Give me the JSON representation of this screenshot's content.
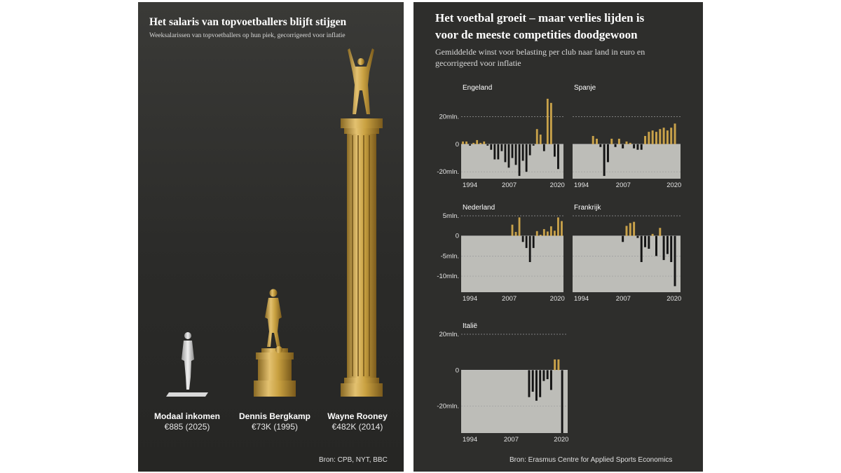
{
  "left_panel": {
    "title": "Het salaris van topvoetballers blijft stijgen",
    "subtitle": "Weeksalarissen van topvoetballers op hun piek, gecorrigeerd voor inflatie",
    "source": "Bron: CPB, NYT, BBC",
    "figures": [
      {
        "name": "Modaal inkomen",
        "value_label": "€885 (2025)"
      },
      {
        "name": "Dennis Bergkamp",
        "value_label": "€73K (1995)"
      },
      {
        "name": "Wayne Rooney",
        "value_label": "€482K (2014)"
      }
    ]
  },
  "right_panel": {
    "title_line1": "Het voetbal groeit – maar verlies lijden is",
    "title_line2": "voor de meeste competities doodgewoon",
    "subtitle_line1": "Gemiddelde winst voor belasting per club naar land in euro en",
    "subtitle_line2": "gecorrigeerd voor inflatie",
    "source": "Bron: Erasmus Centre for Applied Sports Economics"
  },
  "colors": {
    "positive": "#c9a24a",
    "negative": "#141414",
    "plot_bg": "#bdbdb8",
    "gold": "#c8a040"
  },
  "chart_data": [
    {
      "type": "bar",
      "title": "Het salaris van topvoetballers blijft stijgen",
      "subtitle": "Weeksalarissen van topvoetballers op hun piek, gecorrigeerd voor inflatie",
      "categories": [
        "Modaal inkomen",
        "Dennis Bergkamp",
        "Wayne Rooney"
      ],
      "values": [
        885,
        73000,
        482000
      ],
      "value_labels": [
        "€885 (2025)",
        "€73K (1995)",
        "€482K (2014)"
      ]
    },
    {
      "type": "bar",
      "title": "Engeland",
      "x": [
        1994,
        1995,
        1996,
        1997,
        1998,
        1999,
        2000,
        2001,
        2002,
        2003,
        2004,
        2005,
        2006,
        2007,
        2008,
        2009,
        2010,
        2011,
        2012,
        2013,
        2014,
        2015,
        2016,
        2017,
        2018,
        2019,
        2020,
        2021,
        2022
      ],
      "values": [
        2,
        2,
        -1,
        1,
        3,
        1,
        2,
        -1,
        -4,
        -11,
        -11,
        -5,
        -13,
        -17,
        -10,
        -15,
        -23,
        -12,
        -20,
        -8,
        -1,
        11,
        7,
        -5,
        33,
        30,
        -9,
        -18,
        0
      ],
      "yticks": [
        20,
        0,
        -20
      ],
      "ytick_labels": [
        "20mln.",
        "0",
        "-20mln."
      ],
      "ylim": [
        -25,
        35
      ],
      "xtick_labels": [
        "1994",
        "2007",
        "2020"
      ]
    },
    {
      "type": "bar",
      "title": "Spanje",
      "x": [
        1994,
        1995,
        1996,
        1997,
        1998,
        1999,
        2000,
        2001,
        2002,
        2003,
        2004,
        2005,
        2006,
        2007,
        2008,
        2009,
        2010,
        2011,
        2012,
        2013,
        2014,
        2015,
        2016,
        2017,
        2018,
        2019,
        2020,
        2021,
        2022
      ],
      "values": [
        0,
        0,
        0,
        0,
        0,
        6,
        4,
        -2,
        -23,
        -13,
        4,
        -2,
        4,
        -3,
        2,
        1,
        -3,
        -4,
        -4,
        6,
        9,
        10,
        9,
        11,
        12,
        10,
        12,
        15,
        0
      ],
      "yticks": [
        20,
        0,
        -20
      ],
      "ytick_labels": [
        "20mln.",
        "0",
        "-20mln."
      ],
      "ylim": [
        -25,
        35
      ],
      "xtick_labels": [
        "1994",
        "2007",
        "2020"
      ]
    },
    {
      "type": "bar",
      "title": "Nederland",
      "x": [
        1994,
        1995,
        1996,
        1997,
        1998,
        1999,
        2000,
        2001,
        2002,
        2003,
        2004,
        2005,
        2006,
        2007,
        2008,
        2009,
        2010,
        2011,
        2012,
        2013,
        2014,
        2015,
        2016,
        2017,
        2018,
        2019,
        2020,
        2021,
        2022
      ],
      "values": [
        0,
        0,
        0,
        0,
        0,
        0,
        0,
        0,
        0,
        0,
        0,
        0,
        0,
        0,
        2.8,
        1,
        4.6,
        -1.5,
        -3,
        -6.5,
        -3,
        1.2,
        0.3,
        1.7,
        1.1,
        2.4,
        1.3,
        4.6,
        3.7
      ],
      "yticks": [
        5,
        0,
        -5,
        -10
      ],
      "ytick_labels": [
        "5mln.",
        "0",
        "-5mln.",
        "-10mln."
      ],
      "ylim": [
        -14,
        5
      ],
      "xtick_labels": [
        "1994",
        "2007",
        "2020"
      ]
    },
    {
      "type": "bar",
      "title": "Frankrijk",
      "x": [
        1994,
        1995,
        1996,
        1997,
        1998,
        1999,
        2000,
        2001,
        2002,
        2003,
        2004,
        2005,
        2006,
        2007,
        2008,
        2009,
        2010,
        2011,
        2012,
        2013,
        2014,
        2015,
        2016,
        2017,
        2018,
        2019,
        2020,
        2021,
        2022
      ],
      "values": [
        0,
        0,
        0,
        0,
        0,
        0,
        0,
        0,
        0,
        0,
        0,
        0,
        0,
        -1.5,
        2.5,
        3.2,
        3.5,
        -0.5,
        -6.5,
        -2.8,
        -3.2,
        0.5,
        -5,
        2,
        -6,
        -4.5,
        -6.5,
        -12.5,
        0
      ],
      "yticks": [
        5,
        0,
        -5,
        -10
      ],
      "ytick_labels": [
        "5mln.",
        "0",
        "-5mln.",
        "-10mln."
      ],
      "ylim": [
        -14,
        5
      ],
      "xtick_labels": [
        "1994",
        "2007",
        "2020"
      ]
    },
    {
      "type": "bar",
      "title": "Italië",
      "x": [
        1994,
        1995,
        1996,
        1997,
        1998,
        1999,
        2000,
        2001,
        2002,
        2003,
        2004,
        2005,
        2006,
        2007,
        2008,
        2009,
        2010,
        2011,
        2012,
        2013,
        2014,
        2015,
        2016,
        2017,
        2018,
        2019,
        2020,
        2021,
        2022
      ],
      "values": [
        0,
        0,
        0,
        0,
        0,
        0,
        0,
        0,
        0,
        0,
        0,
        0,
        0,
        0,
        0,
        0,
        0,
        0,
        -15,
        -12,
        -17,
        -15,
        -6,
        -5,
        -11,
        6,
        6,
        -35,
        0
      ],
      "yticks": [
        20,
        0,
        -20
      ],
      "ytick_labels": [
        "20mln.",
        "0",
        "-20mln."
      ],
      "ylim": [
        -35,
        20
      ],
      "xtick_labels": [
        "1994",
        "2007",
        "2020"
      ]
    }
  ]
}
